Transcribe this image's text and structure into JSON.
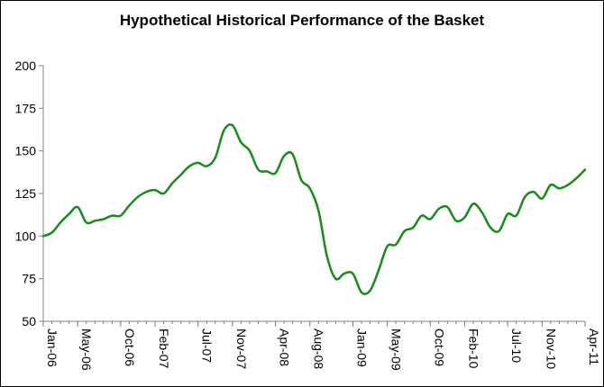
{
  "chart_data": {
    "type": "line",
    "title": "Hypothetical Historical Performance of the Basket",
    "xlabel": "",
    "ylabel": "",
    "ylim": [
      50,
      200
    ],
    "yticks": [
      "50",
      "75",
      "100",
      "125",
      "150",
      "175",
      "200"
    ],
    "xlim": [
      "2006-01",
      "2011-04"
    ],
    "x_tick_labels": [
      "Jan-06",
      "May-06",
      "Oct-06",
      "Feb-07",
      "Jul-07",
      "Nov-07",
      "Apr-08",
      "Aug-08",
      "Jan-09",
      "May-09",
      "Oct-09",
      "Feb-10",
      "Jul-10",
      "Nov-10",
      "Apr-11"
    ],
    "grid": false,
    "legend": "none",
    "colors": {
      "line": "#1a8a1a",
      "axis": "#808080",
      "text": "#000000"
    },
    "series": [
      {
        "x": [
          "2006-01",
          "2006-02",
          "2006-03",
          "2006-04",
          "2006-05",
          "2006-06",
          "2006-07",
          "2006-08",
          "2006-09",
          "2006-10",
          "2006-11",
          "2006-12",
          "2007-01",
          "2007-02",
          "2007-03",
          "2007-04",
          "2007-05",
          "2007-06",
          "2007-07",
          "2007-08",
          "2007-09",
          "2007-10",
          "2007-11",
          "2007-12",
          "2008-01",
          "2008-02",
          "2008-03",
          "2008-04",
          "2008-05",
          "2008-06",
          "2008-07",
          "2008-08",
          "2008-09",
          "2008-10",
          "2008-11",
          "2008-12",
          "2009-01",
          "2009-02",
          "2009-03",
          "2009-04",
          "2009-05",
          "2009-06",
          "2009-07",
          "2009-08",
          "2009-09",
          "2009-10",
          "2009-11",
          "2009-12",
          "2010-01",
          "2010-02",
          "2010-03",
          "2010-04",
          "2010-05",
          "2010-06",
          "2010-07",
          "2010-08",
          "2010-09",
          "2010-10",
          "2010-11",
          "2010-12",
          "2011-01",
          "2011-02",
          "2011-03",
          "2011-04"
        ],
        "values": [
          100,
          102,
          108,
          113,
          117,
          108,
          109,
          110,
          112,
          112,
          118,
          123,
          126,
          127,
          125,
          131,
          136,
          141,
          143,
          141,
          146,
          162,
          165,
          155,
          150,
          139,
          138,
          137,
          147,
          148,
          133,
          128,
          115,
          88,
          75,
          78,
          78,
          67,
          68,
          80,
          94,
          95,
          103,
          105,
          112,
          110,
          116,
          117,
          109,
          111,
          119,
          114,
          105,
          103,
          113,
          112,
          123,
          126,
          122,
          130,
          128,
          130,
          134,
          139
        ]
      }
    ]
  }
}
